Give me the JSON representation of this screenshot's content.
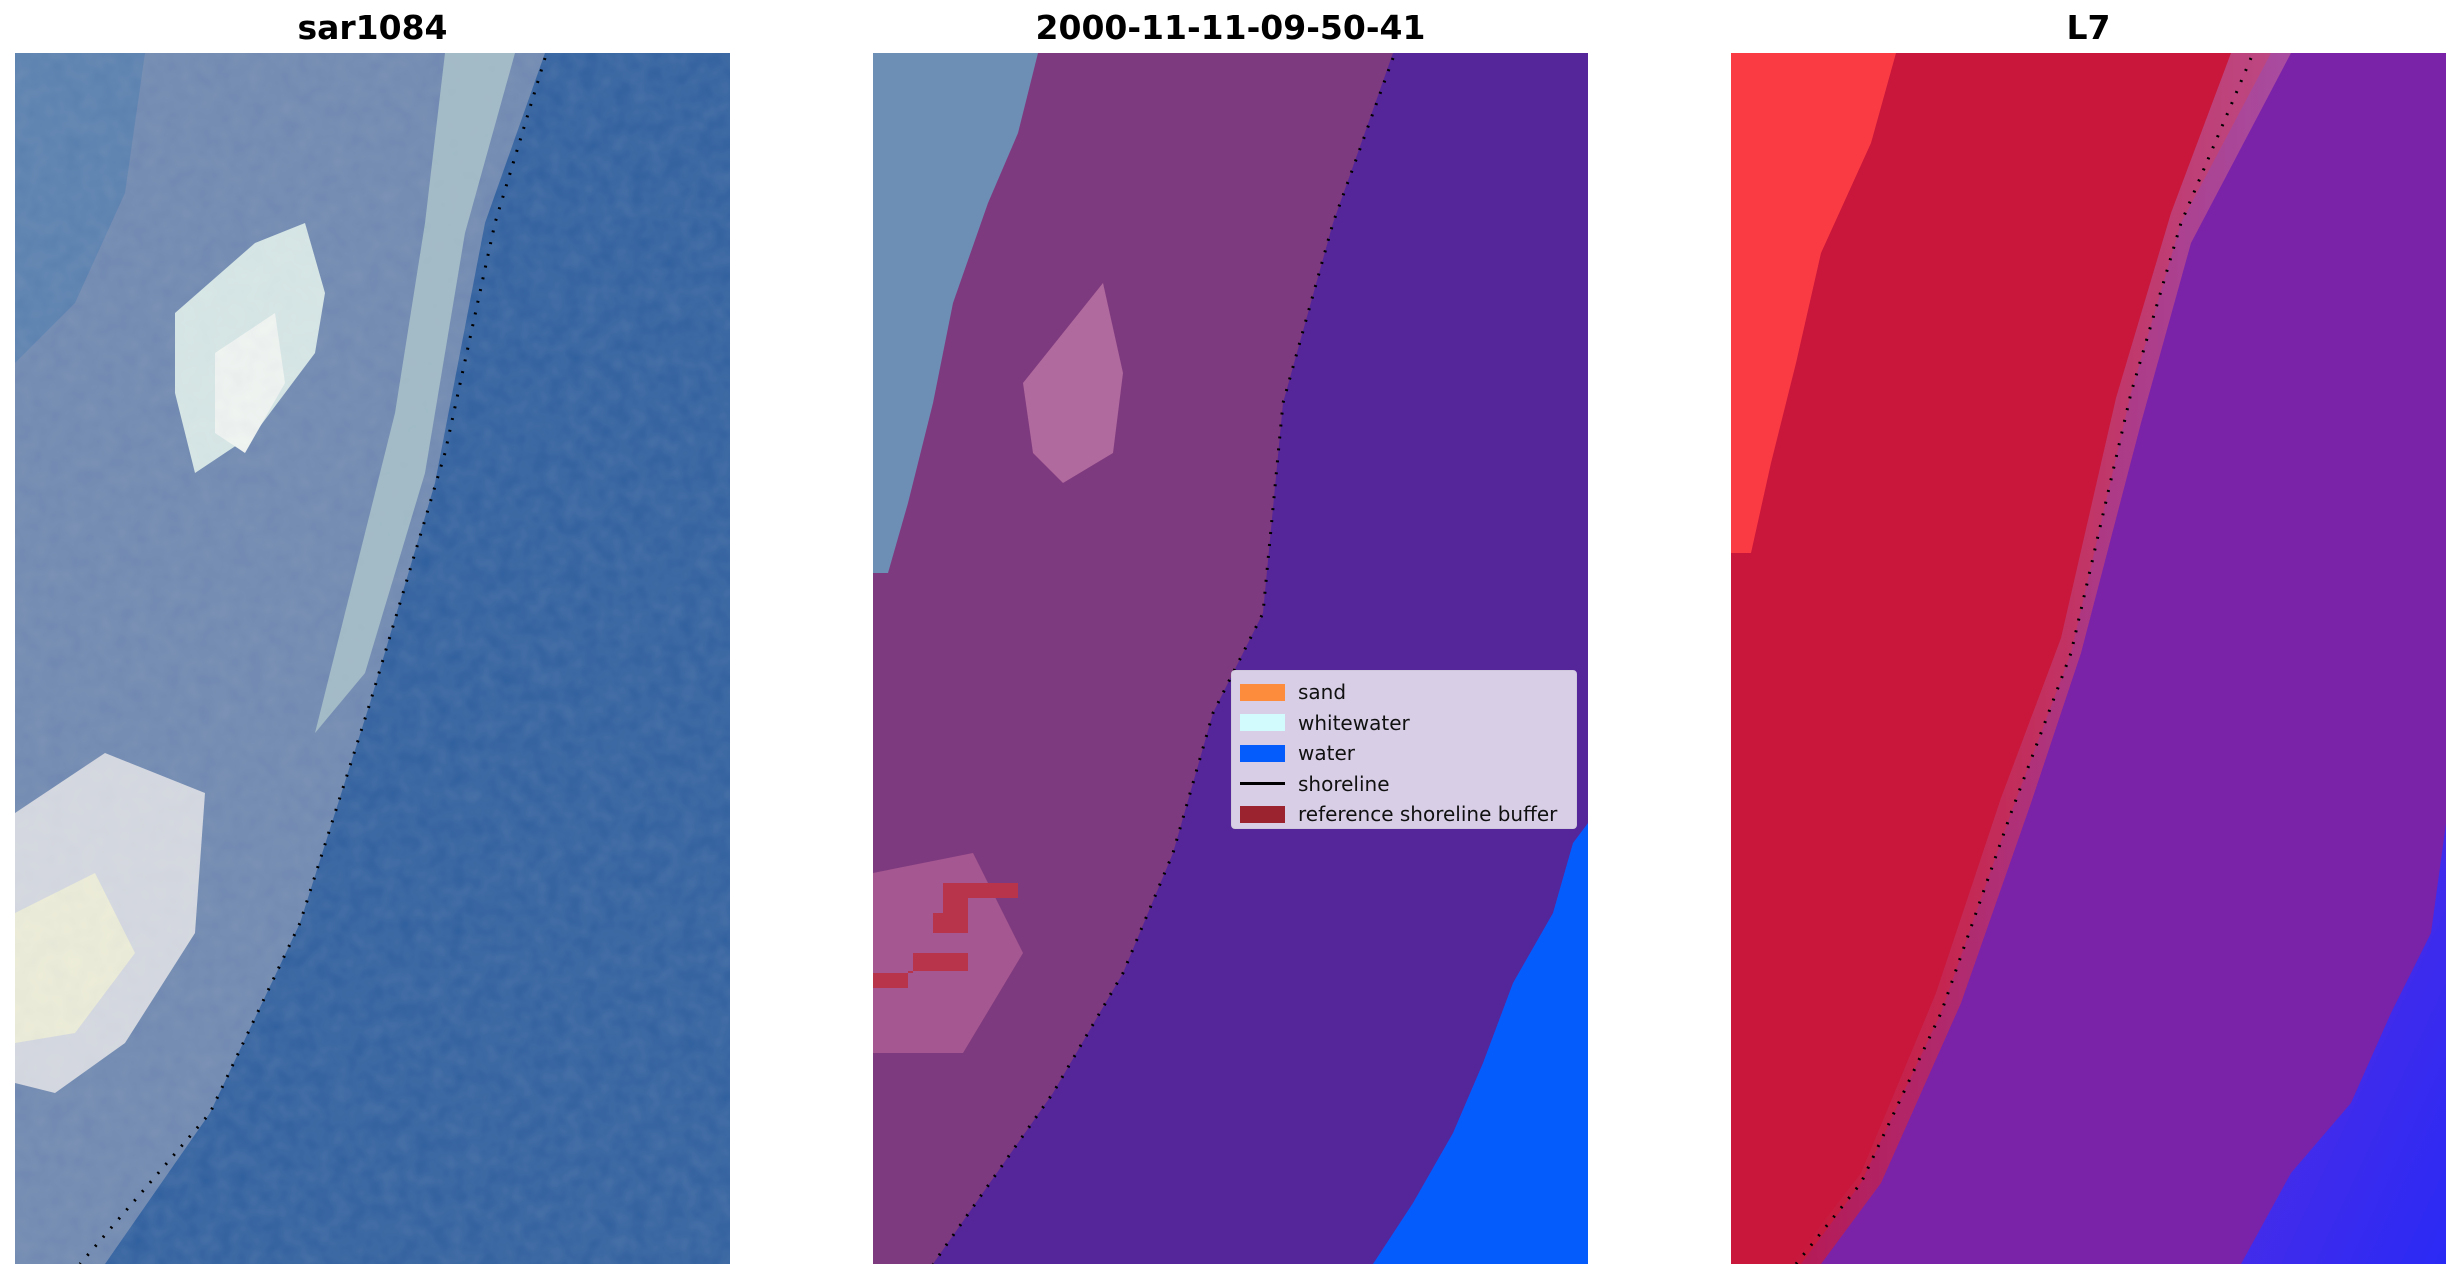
{
  "panels": [
    {
      "title": "sar1084"
    },
    {
      "title": "2000-11-11-09-50-41"
    },
    {
      "title": "L7"
    }
  ],
  "legend": {
    "items": [
      {
        "label": "sand",
        "kind": "patch",
        "color": "#fd8c3c"
      },
      {
        "label": "whitewater",
        "kind": "patch",
        "color": "#d2fbfd"
      },
      {
        "label": "water",
        "kind": "patch",
        "color": "#055cfd"
      },
      {
        "label": "shoreline",
        "kind": "line",
        "color": "#000000"
      },
      {
        "label": "reference shoreline buffer",
        "kind": "patch",
        "color": "#9b2330"
      }
    ]
  },
  "colors": {
    "rgb_sea": "#2f5f9e",
    "rgb_land": "#6f88b0",
    "rgb_bright": "#e6ecec",
    "classified_land": "#7e3a7e",
    "classified_sea": "#55259a",
    "classified_water": "#055cfd",
    "classified_buffer": "#b8344a",
    "index_land": "#c8173a",
    "index_land_bright": "#fb3b44",
    "index_sea": "#7a22a8",
    "index_deep": "#3c35f2"
  }
}
